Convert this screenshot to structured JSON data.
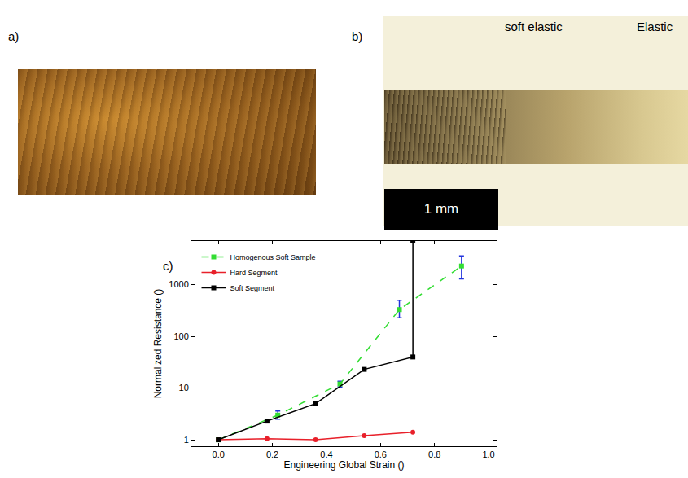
{
  "panel_labels": [
    "a)",
    "b)",
    "c)"
  ],
  "image_b": {
    "regions": [
      "soft elastic",
      "Elastic"
    ],
    "scale_bar": "1 mm"
  },
  "chart_data": {
    "type": "line",
    "xlabel": "Engineering Global Strain ()",
    "ylabel": "Normalized Resistance ()",
    "log": "y",
    "legend": "upper left",
    "xlim": [
      -0.1,
      1.03
    ],
    "ylim": [
      0.75,
      7000
    ],
    "xticks": [
      {
        "value": 0,
        "label": "0.0"
      },
      {
        "value": 0.2,
        "label": "0.2"
      },
      {
        "value": 0.4,
        "label": "0.4"
      },
      {
        "value": 0.6,
        "label": "0.6"
      },
      {
        "value": 0.8,
        "label": "0.8"
      },
      {
        "value": 1,
        "label": "1.0"
      }
    ],
    "yticks": [
      1,
      10,
      100,
      1000
    ],
    "series": [
      {
        "name": "Homogenous Soft Sample",
        "color": "#33dd33",
        "line_style": "dash",
        "marker": "square",
        "x": [
          0,
          0.22,
          0.45,
          0.67,
          0.9
        ],
        "values": [
          1,
          3.0,
          12,
          330,
          2300
        ],
        "error_plus": [
          0,
          0.6,
          1.5,
          170,
          1300
        ],
        "error_minus": [
          0,
          0.5,
          1.5,
          100,
          1000
        ]
      },
      {
        "name": "Hard Segment",
        "color": "#e8202a",
        "line_style": "solid",
        "marker": "circle",
        "x": [
          0,
          0.18,
          0.36,
          0.54,
          0.72
        ],
        "values": [
          1,
          1.05,
          1.0,
          1.2,
          1.4
        ]
      },
      {
        "name": "Soft Segment",
        "color": "#000000",
        "line_style": "solid",
        "marker": "square",
        "x": [
          0,
          0.18,
          0.36,
          0.54,
          0.72,
          0.72
        ],
        "values": [
          1,
          2.3,
          5,
          23,
          40,
          7000
        ]
      }
    ]
  }
}
